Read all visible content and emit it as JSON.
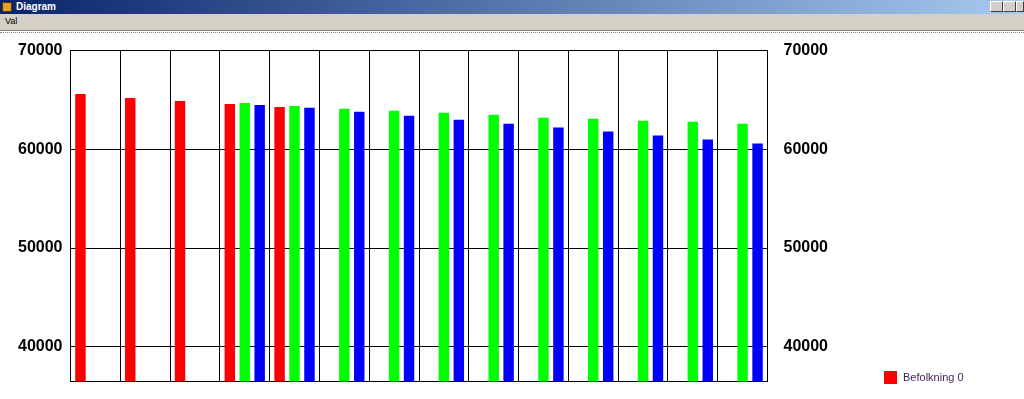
{
  "window": {
    "title": "Diagram",
    "menu": [
      "Val"
    ]
  },
  "chart_data": {
    "type": "bar",
    "categories": [
      null,
      null,
      null,
      null,
      null,
      null,
      null,
      null,
      null,
      null,
      null,
      null,
      null,
      null
    ],
    "series": [
      {
        "name": "Befolkning 0",
        "color": "#ff0000",
        "values": [
          65600,
          65200,
          64900,
          64600,
          64300,
          null,
          null,
          null,
          null,
          null,
          null,
          null,
          null,
          null
        ]
      },
      {
        "color": "#00ff00",
        "values": [
          null,
          null,
          null,
          64700,
          64400,
          64100,
          63900,
          63700,
          63500,
          63200,
          63100,
          62900,
          62800,
          62600
        ]
      },
      {
        "color": "#0000ff",
        "values": [
          null,
          null,
          null,
          64500,
          64200,
          63800,
          63400,
          63000,
          62600,
          62200,
          61800,
          61400,
          61000,
          60600
        ]
      }
    ],
    "ylim": [
      36500,
      70000
    ],
    "yticks": [
      40000,
      50000,
      60000,
      70000
    ],
    "y2lim": [
      36500,
      70000
    ],
    "y2ticks": [
      40000,
      50000,
      60000,
      70000
    ],
    "grid": true,
    "legend": "right",
    "tick_labels": "y"
  }
}
